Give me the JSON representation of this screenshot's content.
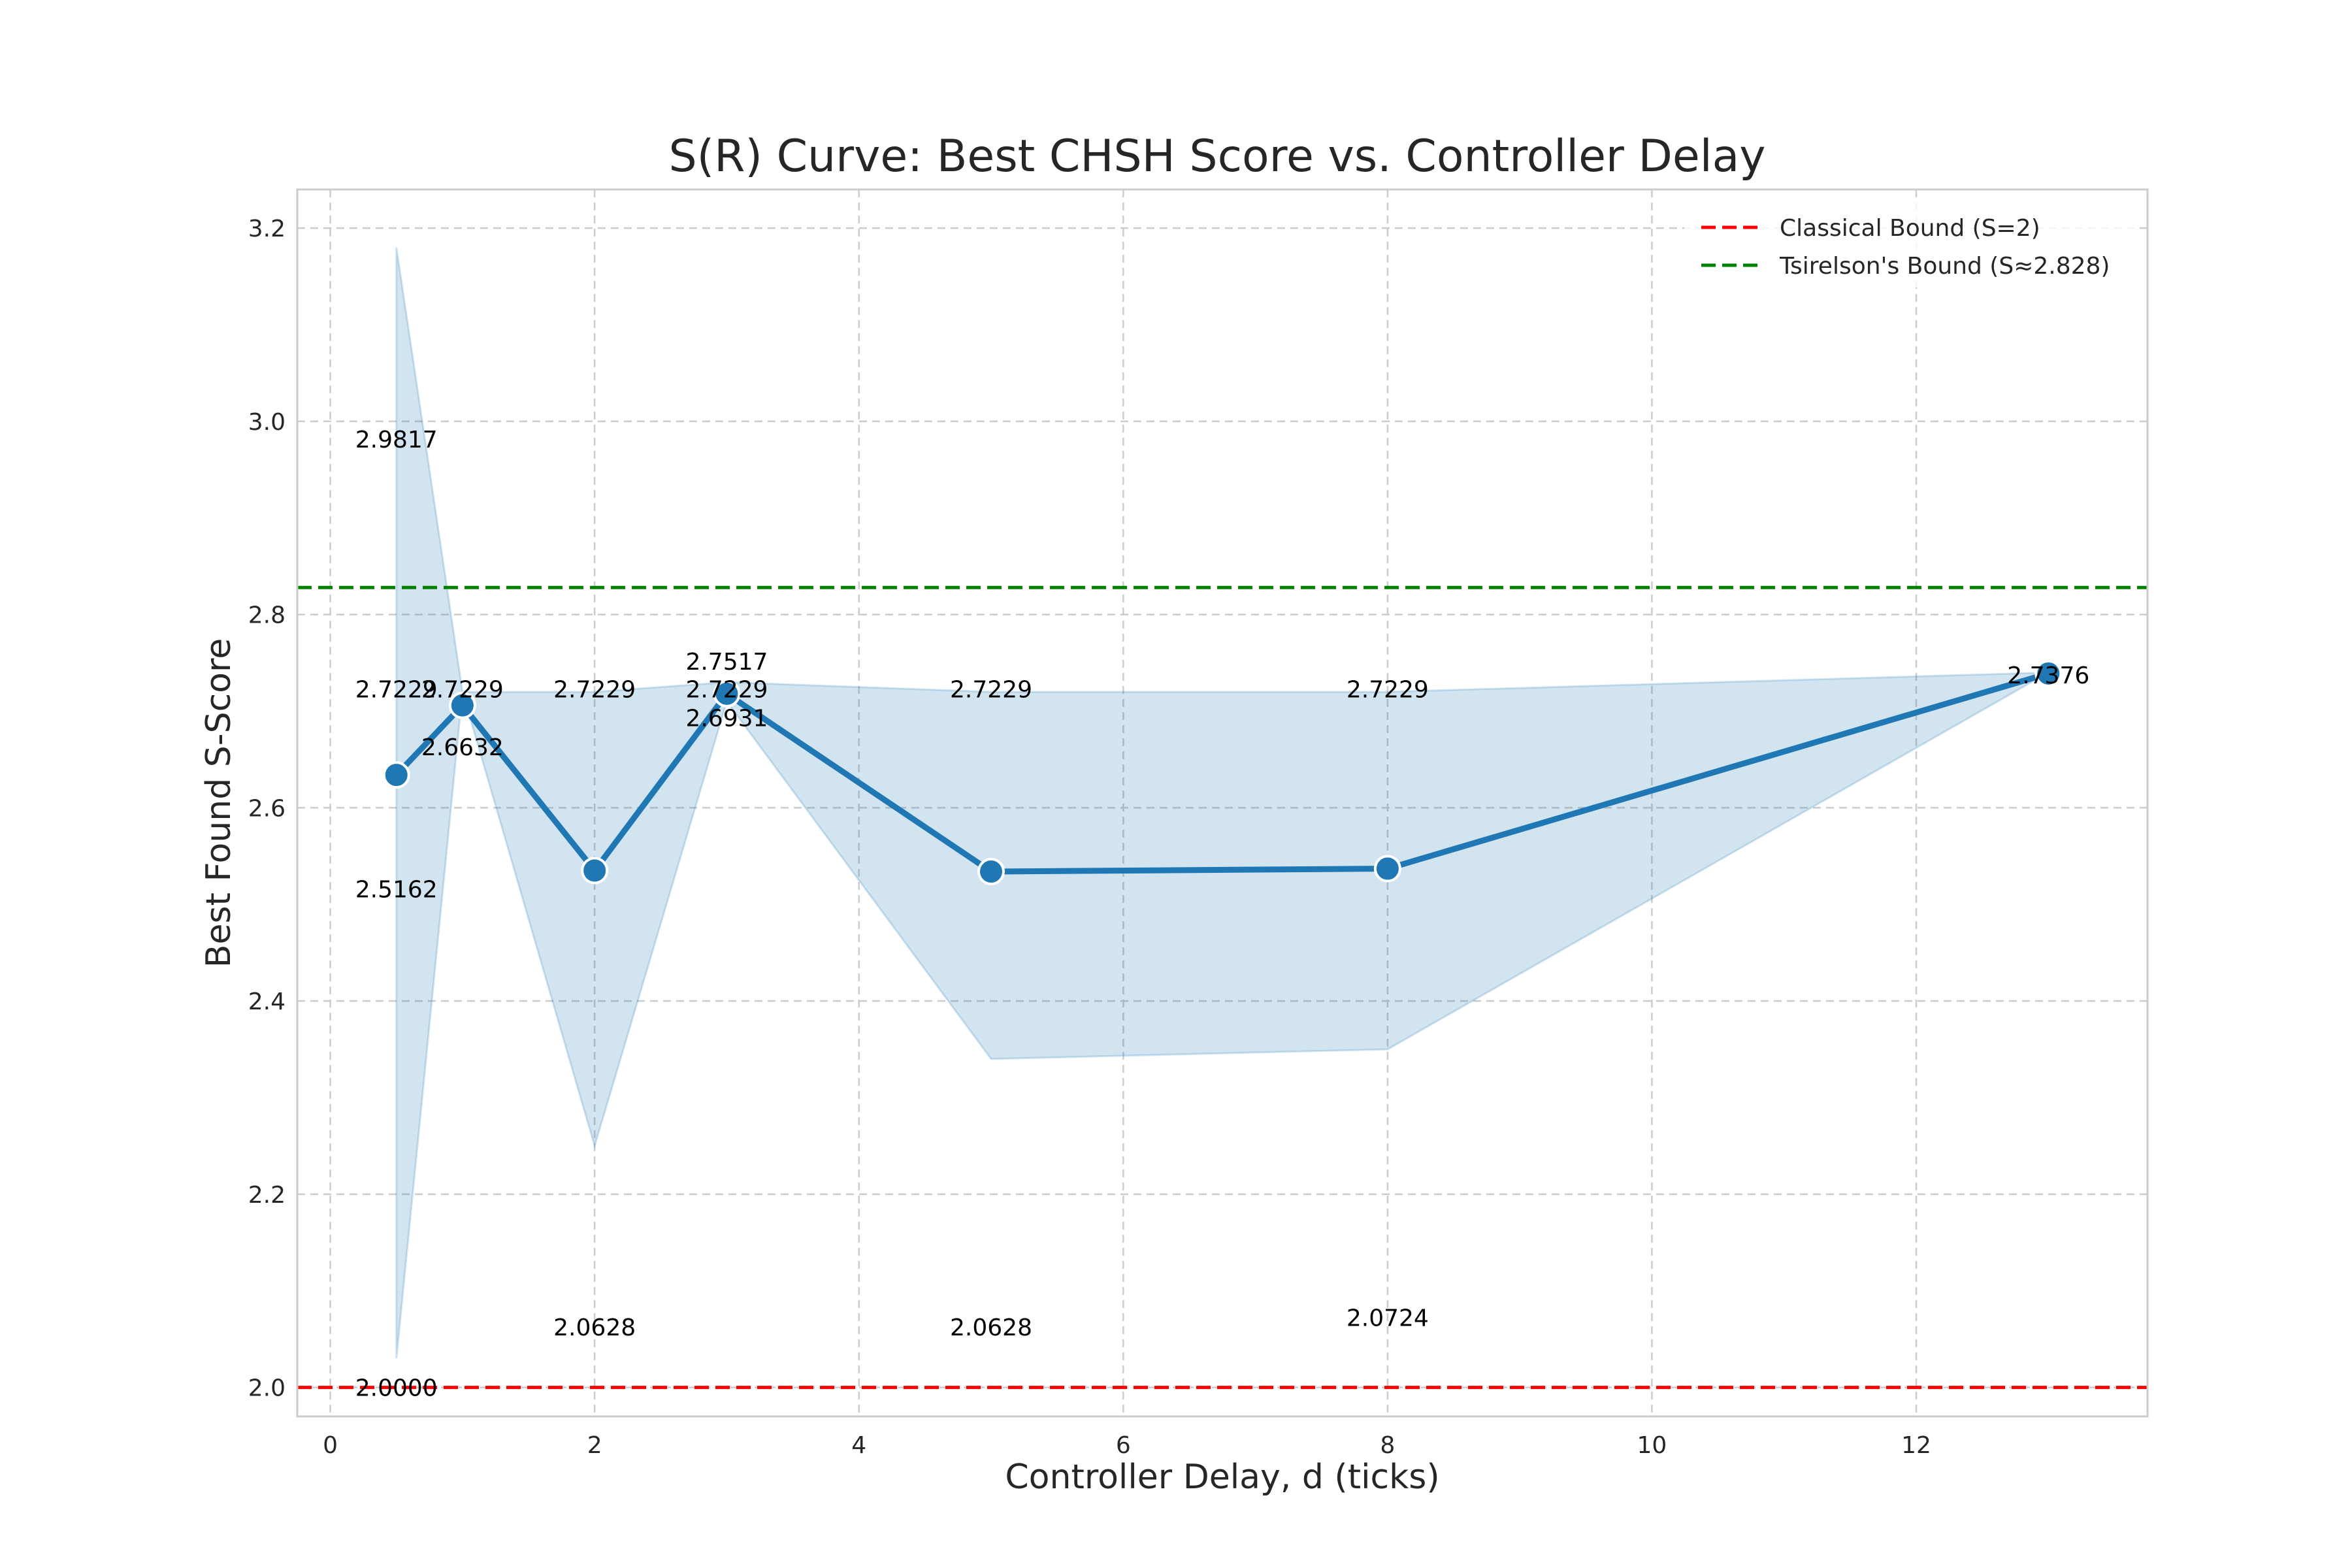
{
  "chart_data": {
    "type": "line",
    "title": "S(R) Curve: Best CHSH Score vs. Controller Delay",
    "xlabel": "Controller Delay, d (ticks)",
    "ylabel": "Best Found S-Score",
    "xlim": [
      -0.25,
      13.75
    ],
    "ylim": [
      1.97,
      3.24
    ],
    "xticks": [
      0,
      2,
      4,
      6,
      8,
      10,
      12
    ],
    "xtick_labels": [
      "0",
      "2",
      "4",
      "6",
      "8",
      "10",
      "12"
    ],
    "yticks": [
      2.0,
      2.2,
      2.4,
      2.6,
      2.8,
      3.0,
      3.2
    ],
    "ytick_labels": [
      "2.0",
      "2.2",
      "2.4",
      "2.6",
      "2.8",
      "3.0",
      "3.2"
    ],
    "grid": true,
    "legend_position": "top-right",
    "series": [
      {
        "x": [
          0.5,
          1,
          2,
          3,
          5,
          8,
          13
        ],
        "values": [
          2.634,
          2.706,
          2.535,
          2.718,
          2.534,
          2.537,
          2.739
        ],
        "color": "#1f77b4"
      }
    ],
    "band": {
      "x": [
        0.5,
        1,
        2,
        3,
        5,
        8,
        13
      ],
      "upper": [
        3.18,
        2.72,
        2.72,
        2.73,
        2.72,
        2.72,
        2.74
      ],
      "lower": [
        2.03,
        2.72,
        2.25,
        2.71,
        2.34,
        2.35,
        2.74
      ],
      "color": "#1f77b4"
    },
    "reference_lines": [
      {
        "name": "Classical Bound (S=2)",
        "y": 2.0,
        "color": "#ff0000"
      },
      {
        "name": "Tsirelson's Bound (S≈2.828)",
        "y": 2.828,
        "color": "#008000"
      }
    ],
    "annotations": [
      {
        "text": "2.9817",
        "x": 0.5,
        "y": 2.9817
      },
      {
        "text": "2.7229",
        "x": 0.5,
        "y": 2.7229
      },
      {
        "text": "2.5162",
        "x": 0.5,
        "y": 2.5162
      },
      {
        "text": "2.0000",
        "x": 0.5,
        "y": 2.0
      },
      {
        "text": "2.7229",
        "x": 1,
        "y": 2.7229
      },
      {
        "text": "2.6632",
        "x": 1,
        "y": 2.6632
      },
      {
        "text": "2.7229",
        "x": 2,
        "y": 2.7229
      },
      {
        "text": "2.0628",
        "x": 2,
        "y": 2.0628
      },
      {
        "text": "2.7517",
        "x": 3,
        "y": 2.7517
      },
      {
        "text": "2.7229",
        "x": 3,
        "y": 2.7229
      },
      {
        "text": "2.6931",
        "x": 3,
        "y": 2.6931
      },
      {
        "text": "2.7229",
        "x": 5,
        "y": 2.7229
      },
      {
        "text": "2.0628",
        "x": 5,
        "y": 2.0628
      },
      {
        "text": "2.7229",
        "x": 8,
        "y": 2.7229
      },
      {
        "text": "2.0724",
        "x": 8,
        "y": 2.0724
      },
      {
        "text": "2.7376",
        "x": 13,
        "y": 2.7376
      }
    ]
  }
}
